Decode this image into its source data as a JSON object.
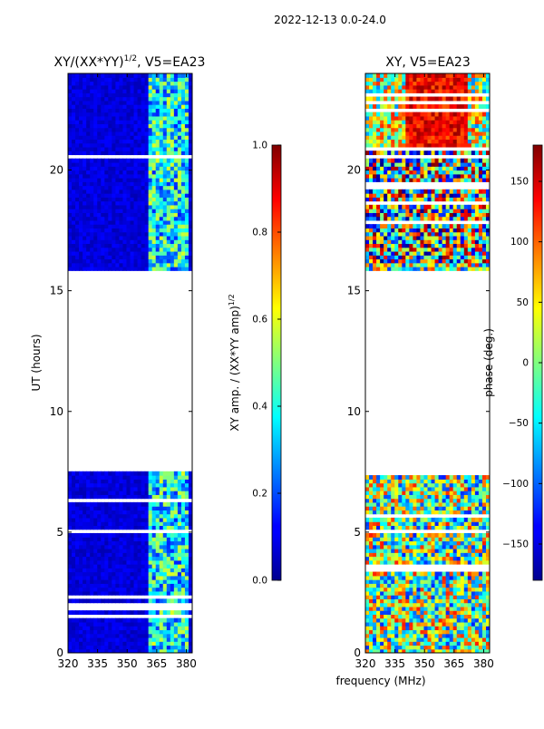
{
  "suptitle": "2022-12-13 0.0-24.0",
  "shared_xlabel": "frequency (MHz)",
  "chart_data": [
    {
      "type": "heatmap",
      "title": "XY/(XX*YY)",
      "title_sup": "1/2",
      "title_suffix": ", V5=EA23",
      "ylabel": "UT (hours)",
      "xlabel": "frequency (MHz)",
      "xticks": [
        "320",
        "335",
        "350",
        "365",
        "380"
      ],
      "yticks": [
        "0",
        "5",
        "10",
        "15",
        "20"
      ],
      "xlim": [
        320,
        383
      ],
      "ylim": [
        0,
        24
      ],
      "colorbar": {
        "label": "XY amp. / (XX*YY amp)",
        "label_sup": "1/2",
        "ticks": [
          "0.0",
          "0.2",
          "0.4",
          "0.6",
          "0.8",
          "1.0"
        ],
        "range": [
          0,
          1
        ]
      },
      "data_ut_ranges": [
        [
          0,
          7.5
        ],
        [
          15.8,
          24
        ]
      ]
    },
    {
      "type": "heatmap",
      "title": "XY, V5=EA23",
      "ylabel": "",
      "xlabel": "frequency (MHz)",
      "xticks": [
        "320",
        "335",
        "350",
        "365",
        "380"
      ],
      "yticks": [
        "0",
        "5",
        "10",
        "15",
        "20"
      ],
      "xlim": [
        320,
        383
      ],
      "ylim": [
        0,
        24
      ],
      "colorbar": {
        "label": "phase (deg.)",
        "ticks": [
          "150",
          "100",
          "50",
          "0",
          "−50",
          "−100",
          "−150"
        ],
        "range": [
          -180,
          180
        ]
      },
      "data_ut_ranges": [
        [
          0,
          7.5
        ],
        [
          15.8,
          24
        ]
      ]
    }
  ]
}
